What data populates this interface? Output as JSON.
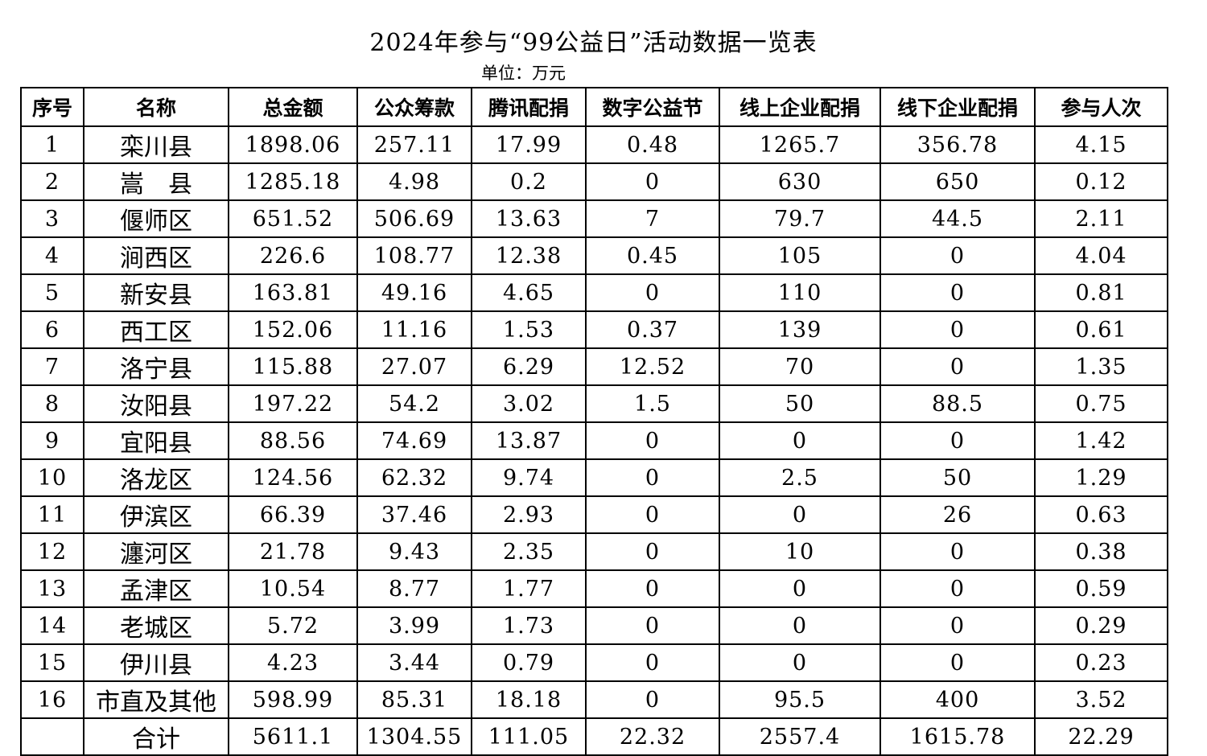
{
  "title": "2024年参与“99公益日”活动数据一览表",
  "unit": "单位：万元",
  "table": {
    "headers": [
      "序号",
      "名称",
      "总金额",
      "公众筹款",
      "腾讯配捐",
      "数字公益节",
      "线上企业配捐",
      "线下企业配捐",
      "参与人次"
    ],
    "rows": [
      [
        "1",
        "栾川县",
        "1898.06",
        "257.11",
        "17.99",
        "0.48",
        "1265.7",
        "356.78",
        "4.15"
      ],
      [
        "2",
        "嵩　县",
        "1285.18",
        "4.98",
        "0.2",
        "0",
        "630",
        "650",
        "0.12"
      ],
      [
        "3",
        "偃师区",
        "651.52",
        "506.69",
        "13.63",
        "7",
        "79.7",
        "44.5",
        "2.11"
      ],
      [
        "4",
        "涧西区",
        "226.6",
        "108.77",
        "12.38",
        "0.45",
        "105",
        "0",
        "4.04"
      ],
      [
        "5",
        "新安县",
        "163.81",
        "49.16",
        "4.65",
        "0",
        "110",
        "0",
        "0.81"
      ],
      [
        "6",
        "西工区",
        "152.06",
        "11.16",
        "1.53",
        "0.37",
        "139",
        "0",
        "0.61"
      ],
      [
        "7",
        "洛宁县",
        "115.88",
        "27.07",
        "6.29",
        "12.52",
        "70",
        "0",
        "1.35"
      ],
      [
        "8",
        "汝阳县",
        "197.22",
        "54.2",
        "3.02",
        "1.5",
        "50",
        "88.5",
        "0.75"
      ],
      [
        "9",
        "宜阳县",
        "88.56",
        "74.69",
        "13.87",
        "0",
        "0",
        "0",
        "1.42"
      ],
      [
        "10",
        "洛龙区",
        "124.56",
        "62.32",
        "9.74",
        "0",
        "2.5",
        "50",
        "1.29"
      ],
      [
        "11",
        "伊滨区",
        "66.39",
        "37.46",
        "2.93",
        "0",
        "0",
        "26",
        "0.63"
      ],
      [
        "12",
        "瀍河区",
        "21.78",
        "9.43",
        "2.35",
        "0",
        "10",
        "0",
        "0.38"
      ],
      [
        "13",
        "孟津区",
        "10.54",
        "8.77",
        "1.77",
        "0",
        "0",
        "0",
        "0.59"
      ],
      [
        "14",
        "老城区",
        "5.72",
        "3.99",
        "1.73",
        "0",
        "0",
        "0",
        "0.29"
      ],
      [
        "15",
        "伊川县",
        "4.23",
        "3.44",
        "0.79",
        "0",
        "0",
        "0",
        "0.23"
      ],
      [
        "16",
        "市直及其他",
        "598.99",
        "85.31",
        "18.18",
        "0",
        "95.5",
        "400",
        "3.52"
      ],
      [
        "",
        "合计",
        "5611.1",
        "1304.55",
        "111.05",
        "22.32",
        "2557.4",
        "1615.78",
        "22.29"
      ]
    ]
  }
}
